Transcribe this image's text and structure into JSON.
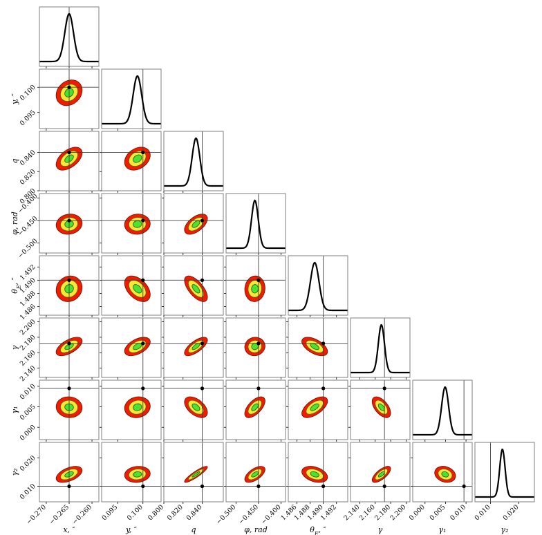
{
  "chart_data": {
    "type": "corner",
    "parameters": [
      {
        "key": "x",
        "label": "x, ″",
        "truth": -0.265,
        "mean": -0.265,
        "sigma": 0.00095,
        "range": [
          -0.2715,
          -0.2585
        ],
        "ticks": [
          -0.27,
          -0.265,
          -0.26
        ],
        "tick_labels": [
          "−0.270",
          "−0.265",
          "−0.260"
        ]
      },
      {
        "key": "y",
        "label": "y, ″",
        "truth": 0.1,
        "mean": 0.0989,
        "sigma": 0.00085,
        "range": [
          0.0918,
          0.1036
        ],
        "ticks": [
          0.095,
          0.1
        ],
        "tick_labels": [
          "0.095",
          "0.100"
        ]
      },
      {
        "key": "q",
        "label": "q",
        "truth": 0.84,
        "mean": 0.8335,
        "sigma": 0.004,
        "range": [
          0.8,
          0.862
        ],
        "ticks": [
          0.8,
          0.82,
          0.84
        ],
        "tick_labels": [
          "0.800",
          "0.820",
          "0.840"
        ]
      },
      {
        "key": "phi",
        "label": "φ, rad",
        "truth": -0.45,
        "mean": -0.458,
        "sigma": 0.0075,
        "range": [
          -0.522,
          -0.39
        ],
        "ticks": [
          -0.5,
          -0.45,
          -0.4
        ],
        "tick_labels": [
          "−0.500",
          "−0.450",
          "−0.400"
        ]
      },
      {
        "key": "thE",
        "label": "θ_E, ″",
        "truth": 1.49,
        "mean": 1.4887,
        "sigma": 0.00065,
        "range": [
          1.4847,
          1.4937
        ],
        "ticks": [
          1.486,
          1.488,
          1.49,
          1.492
        ],
        "tick_labels": [
          "1.486",
          "1.488",
          "1.490",
          "1.492"
        ]
      },
      {
        "key": "gam",
        "label": "γ",
        "truth": 2.172,
        "mean": 2.168,
        "sigma": 0.004,
        "range": [
          2.128,
          2.205
        ],
        "ticks": [
          2.14,
          2.16,
          2.18,
          2.2
        ],
        "tick_labels": [
          "2.140",
          "2.160",
          "2.180",
          "2.200"
        ]
      },
      {
        "key": "gam1",
        "label": "γ₁",
        "truth": 0.0095,
        "mean": 0.0049,
        "sigma": 0.00085,
        "range": [
          -0.003,
          0.0115
        ],
        "ticks": [
          0.0,
          0.005,
          0.01
        ],
        "tick_labels": [
          "0.000",
          "0.005",
          "0.010"
        ]
      },
      {
        "key": "gam2",
        "label": "γ₂",
        "truth": 0.01,
        "mean": 0.0142,
        "sigma": 0.00095,
        "range": [
          0.0045,
          0.0255
        ],
        "ticks": [
          0.01,
          0.02
        ],
        "tick_labels": [
          "0.010",
          "0.020"
        ]
      }
    ],
    "correlations": [
      [
        1,
        0,
        0,
        0,
        0,
        0,
        0,
        0
      ],
      [
        0.2,
        1,
        0,
        0,
        0,
        0,
        0,
        0
      ],
      [
        0.5,
        0.3,
        1,
        0,
        0,
        0,
        0,
        0
      ],
      [
        0.1,
        0.05,
        0.55,
        1,
        0,
        0,
        0,
        0
      ],
      [
        0.1,
        -0.45,
        -0.65,
        0.05,
        1,
        0,
        0,
        0
      ],
      [
        0.6,
        0.5,
        0.7,
        0.05,
        -0.55,
        1,
        0,
        0
      ],
      [
        -0.05,
        0.1,
        -0.5,
        0.6,
        0.6,
        -0.55,
        1,
        0
      ],
      [
        0.5,
        0.1,
        0.9,
        0.6,
        -0.35,
        0.7,
        -0.2,
        1
      ]
    ],
    "contour_levels_sigma": [
      1,
      2,
      3
    ],
    "colors": {
      "one_sigma": "#4ee12e",
      "two_sigma": "#f6e838",
      "three_sigma": "#ee1c00",
      "pdf_line": "#000000",
      "frame": "#7f7f7f"
    }
  }
}
